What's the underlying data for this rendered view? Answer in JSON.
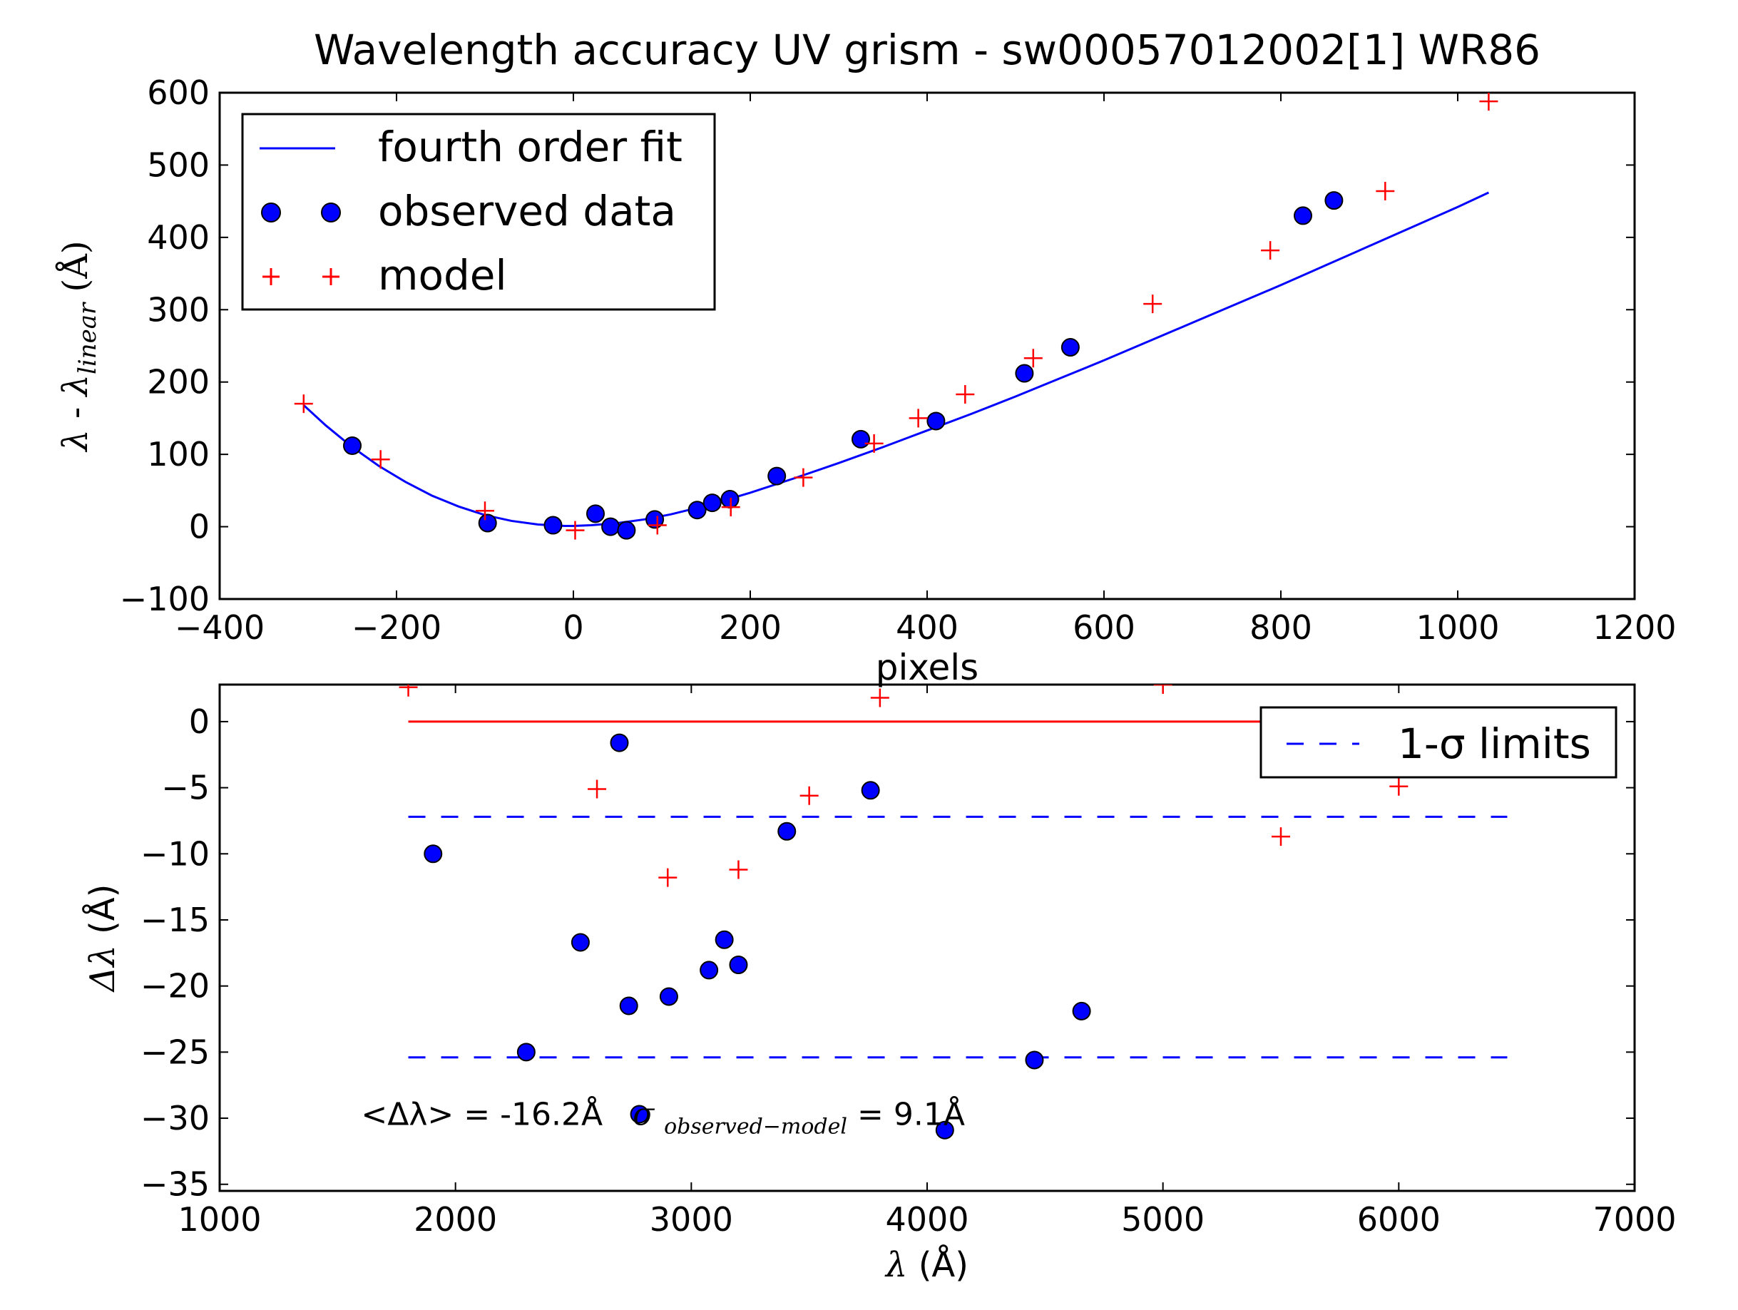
{
  "figure": {
    "title": "Wavelength accuracy UV grism - sw00057012002[1] WR86"
  },
  "chart_data": [
    {
      "type": "scatter",
      "xlabel": "pixels",
      "ylabel": "λ - λlinear (Å)",
      "xlim": [
        -400,
        1200
      ],
      "ylim": [
        -100,
        600
      ],
      "xticks": [
        -400,
        -200,
        0,
        200,
        400,
        600,
        800,
        1000,
        1200
      ],
      "yticks": [
        -100,
        0,
        100,
        200,
        300,
        400,
        500,
        600
      ],
      "xtick_labels": [
        "−400",
        "−200",
        "0",
        "200",
        "400",
        "600",
        "800",
        "1000",
        "1200"
      ],
      "ytick_labels": [
        "−100",
        "0",
        "100",
        "200",
        "300",
        "400",
        "500",
        "600"
      ],
      "grid": false,
      "legend_position": "top-left",
      "legend": [
        {
          "label": "fourth order fit",
          "kind": "line"
        },
        {
          "label": "observed data",
          "kind": "marker-circle"
        },
        {
          "label": "model",
          "kind": "marker-plus"
        }
      ],
      "series": [
        {
          "name": "fourth order fit",
          "kind": "line",
          "color": "#0000ff",
          "x": [
            -305,
            -280,
            -250,
            -220,
            -190,
            -160,
            -130,
            -100,
            -70,
            -40,
            -10,
            0,
            20,
            50,
            80,
            110,
            140,
            170,
            200,
            250,
            300,
            350,
            400,
            450,
            500,
            550,
            600,
            650,
            700,
            750,
            800,
            850,
            900,
            950,
            1000,
            1035
          ],
          "y": [
            168,
            140,
            110,
            84,
            62,
            43,
            28,
            16,
            8,
            3,
            1,
            1,
            2,
            5,
            10,
            17,
            26,
            36,
            47,
            67,
            88,
            110,
            133,
            156,
            180,
            205,
            230,
            256,
            282,
            308,
            334,
            361,
            388,
            415,
            442,
            462
          ]
        },
        {
          "name": "observed data",
          "kind": "circle",
          "color": "#0000ff",
          "x": [
            -250,
            -97,
            -23,
            25,
            42,
            60,
            92,
            140,
            157,
            177,
            230,
            325,
            410,
            510,
            562,
            825,
            860
          ],
          "y": [
            112,
            5,
            2,
            18,
            0,
            -5,
            10,
            23,
            33,
            38,
            70,
            121,
            146,
            212,
            248,
            430,
            451
          ]
        },
        {
          "name": "model",
          "kind": "plus",
          "color": "#ff0000",
          "x": [
            -305,
            -218,
            -100,
            2,
            95,
            178,
            260,
            340,
            390,
            443,
            520,
            655,
            788,
            918,
            1035
          ],
          "y": [
            170,
            93,
            22,
            -5,
            2,
            27,
            68,
            115,
            150,
            183,
            233,
            308,
            382,
            464,
            588
          ]
        }
      ]
    },
    {
      "type": "scatter",
      "xlabel": "λ (Å)",
      "ylabel": "Δλ (Å)",
      "xlim": [
        1000,
        7000
      ],
      "ylim": [
        -35.5,
        2.8
      ],
      "xticks": [
        1000,
        2000,
        3000,
        4000,
        5000,
        6000,
        7000
      ],
      "yticks": [
        -35,
        -30,
        -25,
        -20,
        -15,
        -10,
        -5,
        0
      ],
      "xtick_labels": [
        "1000",
        "2000",
        "3000",
        "4000",
        "5000",
        "6000",
        "7000"
      ],
      "ytick_labels": [
        "−35",
        "−30",
        "−25",
        "−20",
        "−15",
        "−10",
        "−5",
        "0"
      ],
      "grid": false,
      "legend_position": "top-right",
      "legend": [
        {
          "label": "1-σ limits",
          "kind": "dashed-line"
        }
      ],
      "annotation": {
        "text_mean": "<Δλ> = -16.2Å",
        "text_sigma_symbol": "σ",
        "text_sigma_sub": "observed−model",
        "text_sigma_value": " = 9.1Å",
        "x": 1600,
        "y": -30.5
      },
      "series": [
        {
          "name": "zero",
          "kind": "line",
          "color": "#ff0000",
          "x": [
            1800,
            6460
          ],
          "y": [
            0,
            0
          ]
        },
        {
          "name": "1-σ limits upper",
          "kind": "dashed",
          "color": "#0000ff",
          "x": [
            1800,
            6460
          ],
          "y": [
            -7.2,
            -7.2
          ]
        },
        {
          "name": "1-σ limits lower",
          "kind": "dashed",
          "color": "#0000ff",
          "x": [
            1800,
            6460
          ],
          "y": [
            -25.4,
            -25.4
          ]
        },
        {
          "name": "observed data",
          "kind": "circle",
          "color": "#0000ff",
          "x": [
            1905,
            2300,
            2530,
            2695,
            2735,
            2780,
            2905,
            3075,
            3140,
            3200,
            3405,
            3760,
            4075,
            4455,
            4655
          ],
          "y": [
            -10,
            -25,
            -16.7,
            -1.6,
            -21.5,
            -29.7,
            -20.8,
            -18.8,
            -16.5,
            -18.4,
            -8.3,
            -5.2,
            -30.9,
            -25.6,
            -21.9
          ]
        },
        {
          "name": "model",
          "kind": "plus",
          "color": "#ff0000",
          "x": [
            1800,
            2600,
            2900,
            3200,
            3500,
            3800,
            5000,
            5500,
            6000
          ],
          "y": [
            2.6,
            -5.1,
            -11.8,
            -11.2,
            -5.6,
            1.8,
            2.8,
            -8.7,
            -4.9
          ]
        }
      ]
    }
  ]
}
